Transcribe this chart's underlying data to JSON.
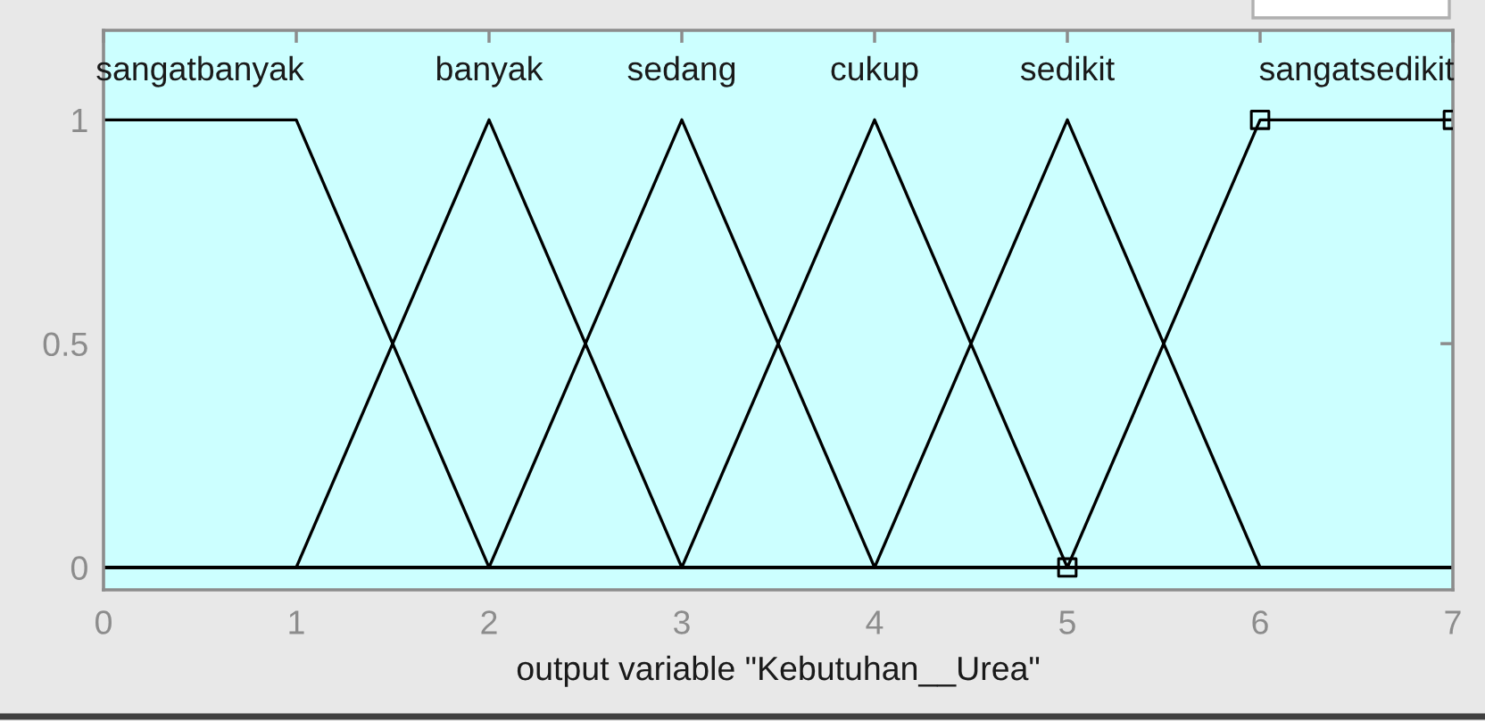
{
  "chart_data": {
    "type": "line",
    "xlabel": "output variable \"Kebutuhan__Urea\"",
    "xlim": [
      0,
      7
    ],
    "ylim": [
      -0.05,
      1.2
    ],
    "xticks": [
      0,
      1,
      2,
      3,
      4,
      5,
      6,
      7
    ],
    "yticks": [
      0,
      0.5,
      1
    ],
    "grid": false,
    "legend": false,
    "line_style": "solid",
    "series": [
      {
        "name": "sangatbanyak",
        "color": "#000000",
        "x": [
          0,
          1,
          2,
          7
        ],
        "values": [
          1,
          1,
          0,
          0
        ]
      },
      {
        "name": "banyak",
        "color": "#000000",
        "x": [
          0,
          1,
          2,
          3,
          7
        ],
        "values": [
          0,
          0,
          1,
          0,
          0
        ]
      },
      {
        "name": "sedang",
        "color": "#000000",
        "x": [
          0,
          2,
          3,
          4,
          7
        ],
        "values": [
          0,
          0,
          1,
          0,
          0
        ]
      },
      {
        "name": "cukup",
        "color": "#000000",
        "x": [
          0,
          3,
          4,
          5,
          7
        ],
        "values": [
          0,
          0,
          1,
          0,
          0
        ]
      },
      {
        "name": "sedikit",
        "color": "#000000",
        "x": [
          0,
          4,
          5,
          6,
          7
        ],
        "values": [
          0,
          0,
          1,
          0,
          0
        ]
      },
      {
        "name": "sangatsedikit",
        "color": "#000000",
        "x": [
          0,
          5,
          6,
          7
        ],
        "values": [
          0,
          0,
          1,
          1
        ]
      },
      {
        "type": "scatter",
        "color": "#000000",
        "marker": "square",
        "x": [
          5,
          6,
          7
        ],
        "values": [
          0,
          1,
          1
        ]
      }
    ]
  }
}
